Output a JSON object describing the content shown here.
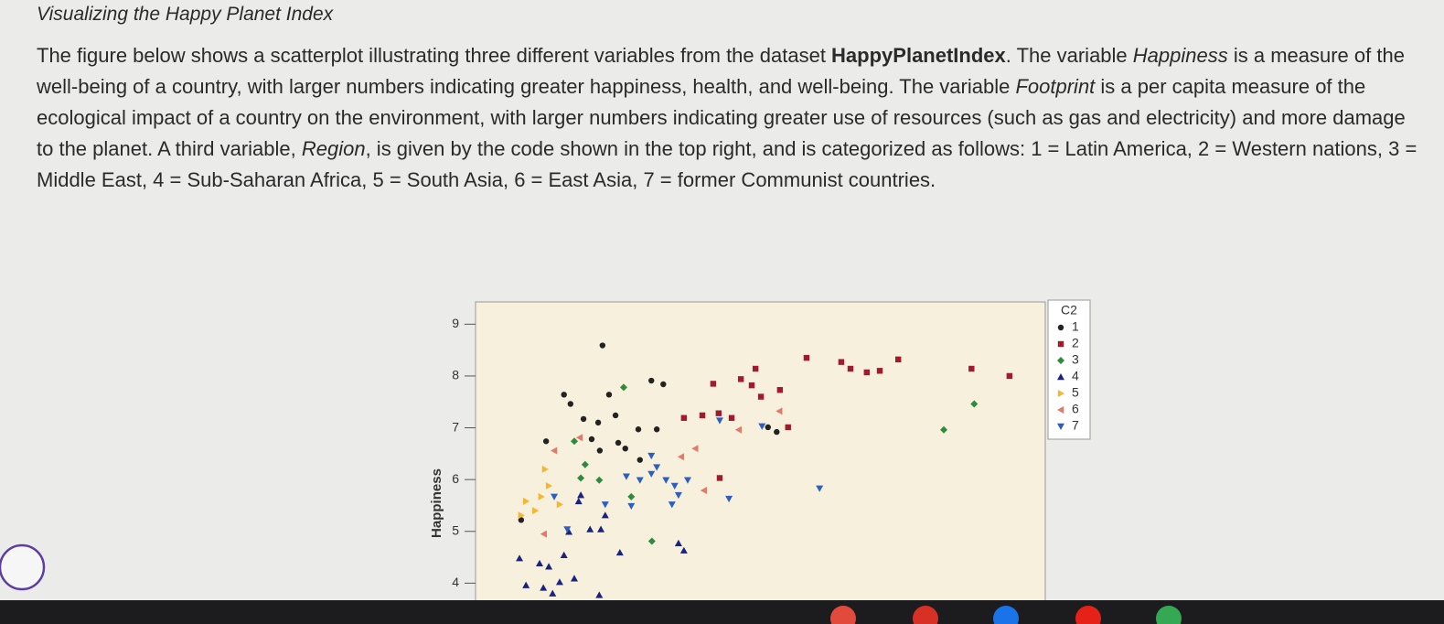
{
  "header": {
    "title": "Visualizing the Happy Planet Index"
  },
  "paragraph": [
    "The figure below shows a scatterplot illustrating three different variables from the dataset ",
    "HappyPlanetIndex",
    ". The variable ",
    "Happiness",
    " is a measure of the well-being of a country, with larger numbers indicating greater happiness, health, and well-being. The variable ",
    "Footprint",
    " is a per capita measure of the ecological impact of a country on the environment, with larger numbers indicating greater use of resources (such as gas and electricity) and more damage to the planet. A third variable, ",
    "Region",
    ", is given by the code shown in the top right, and is categorized as follows: 1 = Latin America, 2 = Western nations, 3 = Middle East, 4 = Sub-Saharan Africa, 5 = South Asia, 6 = East Asia, 7 = former Communist countries."
  ],
  "chart_data": {
    "type": "scatter",
    "y_label": "Happiness",
    "legend_title": "C2",
    "legend": "right",
    "xlim": [
      0,
      10.5
    ],
    "ylim": [
      3.6,
      9.43
    ],
    "yticks": [
      4,
      5,
      6,
      7,
      8,
      9
    ],
    "series": [
      {
        "name": "1",
        "color": "#222222",
        "marker": "circle",
        "x": [
          2.34,
          1.63,
          1.75,
          2.46,
          3.24,
          3.46,
          1.99,
          2.26,
          2.58,
          3.0,
          3.34,
          1.3,
          2.14,
          2.29,
          2.63,
          2.76,
          5.55,
          5.39,
          0.84,
          3.03
        ],
        "values": [
          8.59,
          7.64,
          7.46,
          7.64,
          7.91,
          7.84,
          7.17,
          7.1,
          7.24,
          6.97,
          6.97,
          6.74,
          6.78,
          6.56,
          6.71,
          6.6,
          6.92,
          7.01,
          5.22,
          6.38
        ]
      },
      {
        "name": "2",
        "color": "#a01c2c",
        "marker": "square",
        "x": [
          6.1,
          6.74,
          6.91,
          7.21,
          7.45,
          7.79,
          9.14,
          9.84,
          4.38,
          4.89,
          5.16,
          5.09,
          5.26,
          5.61,
          3.84,
          4.18,
          4.48,
          4.72,
          5.76,
          4.5
        ],
        "values": [
          8.35,
          8.27,
          8.14,
          8.07,
          8.1,
          8.32,
          8.14,
          8.0,
          7.85,
          7.94,
          8.14,
          7.82,
          7.6,
          7.73,
          7.19,
          7.24,
          7.28,
          7.19,
          7.01,
          6.03
        ]
      },
      {
        "name": "3",
        "color": "#2e8b3e",
        "marker": "diamond",
        "x": [
          9.19,
          8.63,
          2.73,
          1.82,
          2.02,
          1.94,
          2.28,
          3.25,
          2.87
        ],
        "values": [
          7.46,
          6.96,
          7.78,
          6.74,
          6.29,
          6.03,
          5.99,
          4.81,
          5.67
        ]
      },
      {
        "name": "4",
        "color": "#1a237e",
        "marker": "triangle-up",
        "x": [
          0.81,
          1.18,
          1.35,
          1.63,
          0.93,
          1.25,
          1.55,
          1.82,
          1.42,
          2.28,
          2.66,
          3.74,
          3.84,
          1.72,
          2.11,
          2.31,
          1.9,
          2.39,
          1.94
        ],
        "values": [
          4.48,
          4.38,
          4.32,
          4.54,
          3.96,
          3.91,
          4.02,
          4.09,
          3.8,
          3.77,
          4.59,
          4.77,
          4.63,
          4.99,
          5.04,
          5.04,
          5.58,
          5.31,
          5.7
        ]
      },
      {
        "name": "5",
        "color": "#f5b731",
        "marker": "triangle-right",
        "x": [
          1.28,
          0.93,
          1.1,
          1.21,
          1.35,
          0.84,
          1.55
        ],
        "values": [
          6.2,
          5.58,
          5.4,
          5.67,
          5.88,
          5.31,
          5.52
        ]
      },
      {
        "name": "6",
        "color": "#e07a6a",
        "marker": "triangle-left",
        "x": [
          1.45,
          1.92,
          3.79,
          4.05,
          4.85,
          5.6,
          1.26,
          4.21
        ],
        "values": [
          6.56,
          6.81,
          6.44,
          6.6,
          6.96,
          7.32,
          4.95,
          5.79
        ]
      },
      {
        "name": "7",
        "color": "#2d5fc0",
        "marker": "triangle-down",
        "x": [
          2.78,
          3.03,
          3.24,
          3.51,
          3.67,
          3.91,
          3.74,
          3.62,
          3.34,
          2.87,
          2.39,
          1.45,
          1.69,
          4.67,
          6.34,
          4.5,
          5.28,
          3.24
        ],
        "values": [
          6.06,
          5.99,
          6.11,
          5.99,
          5.88,
          5.99,
          5.7,
          5.52,
          6.24,
          5.49,
          5.52,
          5.67,
          5.04,
          5.63,
          5.83,
          7.14,
          7.03,
          6.46
        ]
      }
    ]
  }
}
